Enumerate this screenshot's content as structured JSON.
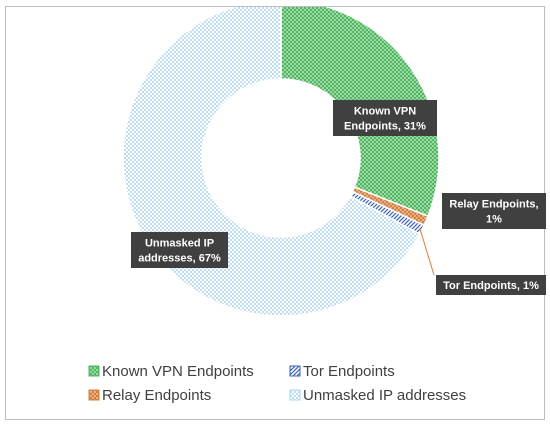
{
  "chart_data": {
    "type": "pie",
    "variant": "donut",
    "title": "",
    "categories": [
      "Known VPN Endpoints",
      "Tor Endpoints",
      "Relay Endpoints",
      "Unmasked IP addresses"
    ],
    "values": [
      31,
      1,
      1,
      67
    ],
    "unit": "%",
    "data_labels": [
      [
        "Known VPN",
        "Endpoints, 31%"
      ],
      [
        "Tor Endpoints, 1%"
      ],
      [
        "Relay Endpoints,",
        "1%"
      ],
      [
        "Unmasked IP",
        "addresses, 67%"
      ]
    ],
    "colors": [
      "#4fb75f",
      "#3a62b3",
      "#d6803f",
      "#a9d4ea"
    ],
    "legend": {
      "position": "bottom",
      "entries": [
        "Known VPN Endpoints",
        "Tor Endpoints",
        "Relay Endpoints",
        "Unmasked IP addresses"
      ]
    }
  }
}
